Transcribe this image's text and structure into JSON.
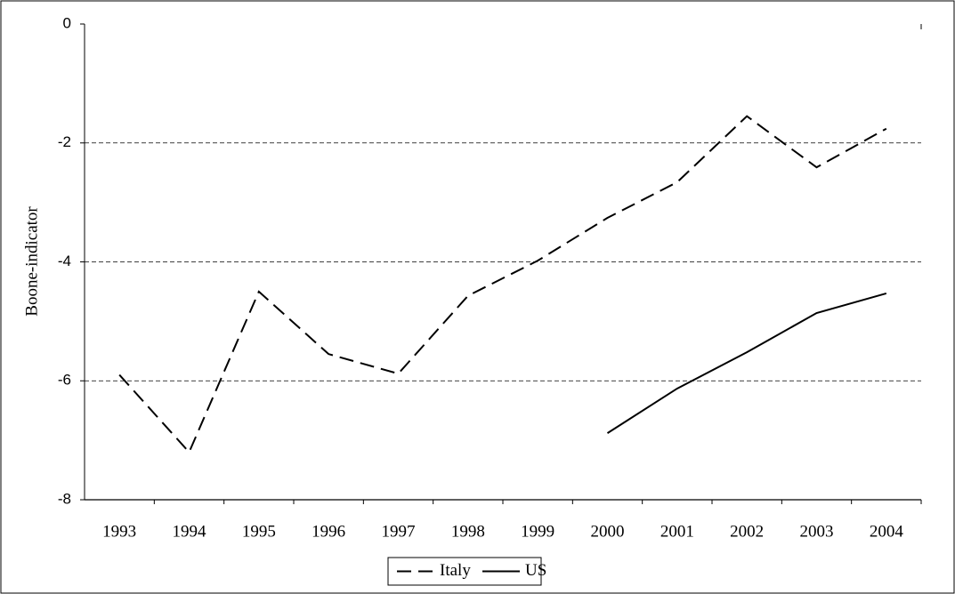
{
  "chart_data": {
    "type": "line",
    "y_label": "Boone-indicator",
    "categories": [
      "1993",
      "1994",
      "1995",
      "1996",
      "1997",
      "1998",
      "1999",
      "2000",
      "2001",
      "2002",
      "2003",
      "2004"
    ],
    "series": [
      {
        "name": "Italy",
        "color": "#000000",
        "dash": true,
        "values": [
          -5.9,
          -7.2,
          -4.5,
          -5.55,
          -5.88,
          -4.57,
          -3.98,
          -3.26,
          -2.66,
          -1.55,
          -2.41,
          -1.76
        ]
      },
      {
        "name": "US",
        "color": "#000000",
        "dash": false,
        "values": [
          null,
          null,
          null,
          null,
          null,
          null,
          null,
          -6.88,
          -6.13,
          -5.52,
          -4.86,
          -4.53
        ]
      }
    ],
    "ylim": [
      -8,
      0
    ],
    "yticks": [
      -8,
      -6,
      -4,
      -2,
      0
    ],
    "grid": true,
    "legend": "bottom"
  }
}
